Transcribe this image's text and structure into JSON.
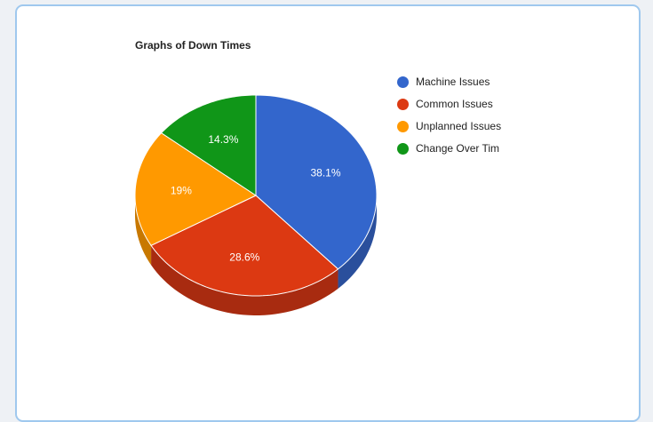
{
  "chart_data": {
    "type": "pie",
    "title": "Graphs of Down Times",
    "categories": [
      "Machine Issues",
      "Common Issues",
      "Unplanned Issues",
      "Change Over Tim"
    ],
    "values": [
      38.1,
      28.6,
      19,
      14.3
    ],
    "value_labels": [
      "38.1%",
      "28.6%",
      "19%",
      "14.3%"
    ],
    "colors": [
      "#3366cc",
      "#dc3912",
      "#ff9900",
      "#109618"
    ],
    "side_colors": [
      "#2a4f9c",
      "#a82b10",
      "#c87800",
      "#0b6f12"
    ],
    "style": "3d",
    "legend_position": "right"
  }
}
